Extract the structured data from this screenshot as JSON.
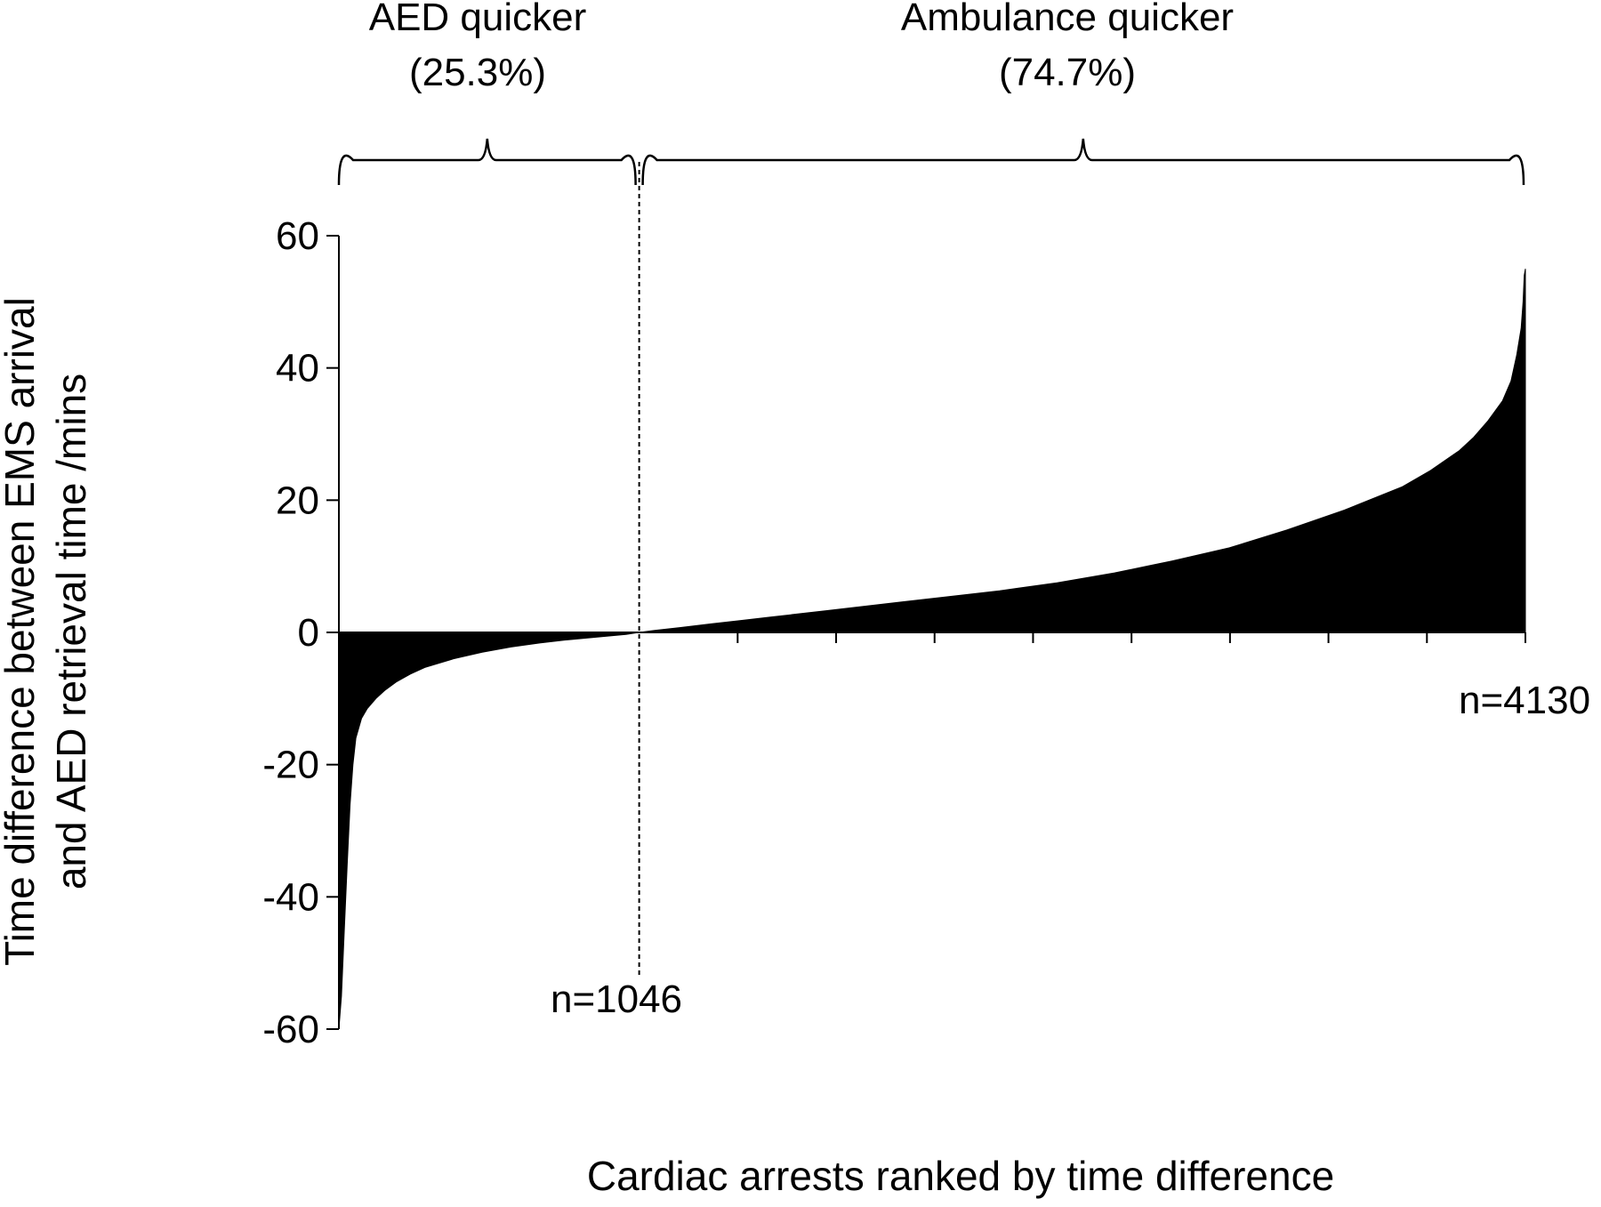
{
  "chart_data": {
    "type": "area",
    "ylabel_line1": "Time difference between EMS arrival",
    "ylabel_line2": "and AED retrieval time /mins",
    "xlabel": "Cardiac arrests ranked by time difference",
    "ylim": [
      -60,
      60
    ],
    "yticks": [
      -60,
      -40,
      -20,
      0,
      20,
      40,
      60
    ],
    "ytick_labels": [
      "-60",
      "-40",
      "-20",
      "0",
      "20",
      "40",
      "60"
    ],
    "xlim": [
      1,
      4130
    ],
    "grid": false,
    "legend": "none",
    "fill_color": "#000000",
    "groups": [
      {
        "label": "AED quicker",
        "percent_label": "(25.3%)",
        "x_start": 1,
        "x_end": 1046
      },
      {
        "label": "Ambulance quicker",
        "percent_label": "(74.7%)",
        "x_start": 1046,
        "x_end": 4130
      }
    ],
    "annotations": [
      {
        "text": "n=1046",
        "x": 1046
      },
      {
        "text": "n=4130",
        "x": 4130
      }
    ],
    "divider_x": 1046,
    "series": [
      {
        "x": [
          1,
          10,
          20,
          30,
          40,
          50,
          60,
          80,
          100,
          130,
          160,
          200,
          250,
          300,
          400,
          500,
          600,
          700,
          800,
          900,
          1000,
          1046,
          1100,
          1200,
          1300,
          1400,
          1500,
          1700,
          1900,
          2100,
          2300,
          2500,
          2700,
          2900,
          3100,
          3300,
          3500,
          3700,
          3800,
          3900,
          3950,
          4000,
          4050,
          4080,
          4100,
          4115,
          4122,
          4126,
          4130
        ],
        "values": [
          -60,
          -55,
          -45,
          -35,
          -26,
          -20,
          -16,
          -13,
          -11.5,
          -10,
          -8.8,
          -7.5,
          -6.3,
          -5.3,
          -4,
          -3,
          -2.2,
          -1.6,
          -1.1,
          -0.7,
          -0.3,
          0,
          0.3,
          0.8,
          1.3,
          1.8,
          2.3,
          3.3,
          4.3,
          5.3,
          6.3,
          7.5,
          9,
          10.8,
          12.8,
          15.5,
          18.5,
          22,
          24.5,
          27.5,
          29.5,
          32,
          35,
          38,
          42,
          46,
          50,
          54,
          55
        ]
      }
    ]
  }
}
